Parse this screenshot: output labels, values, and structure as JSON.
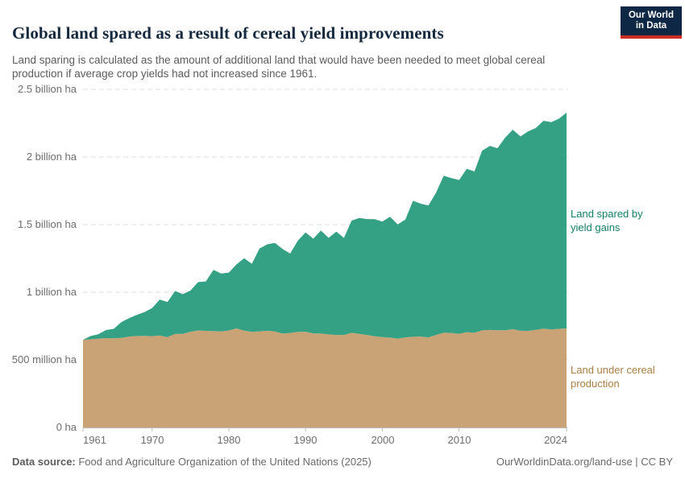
{
  "header": {
    "title": "Global land spared as a result of cereal yield improvements",
    "subtitle": "Land sparing is calculated as the amount of additional land that would have been needed to meet global cereal production if average crop yields had not increased since 1961."
  },
  "logo": {
    "line1": "Our World",
    "line2": "in Data",
    "bg_color": "#0d2744",
    "accent_color": "#cc2e24",
    "text_color": "#ffffff"
  },
  "chart_data": {
    "type": "area",
    "stacked": true,
    "title": "Global land spared as a result of cereal yield improvements",
    "unit": "million hectares",
    "ylim": [
      0,
      2500
    ],
    "grid": "horizontal dashed",
    "x": [
      1961,
      1962,
      1963,
      1964,
      1965,
      1966,
      1967,
      1968,
      1969,
      1970,
      1971,
      1972,
      1973,
      1974,
      1975,
      1976,
      1977,
      1978,
      1979,
      1980,
      1981,
      1982,
      1983,
      1984,
      1985,
      1986,
      1987,
      1988,
      1989,
      1990,
      1991,
      1992,
      1993,
      1994,
      1995,
      1996,
      1997,
      1998,
      1999,
      2000,
      2001,
      2002,
      2003,
      2004,
      2005,
      2006,
      2007,
      2008,
      2009,
      2010,
      2011,
      2012,
      2013,
      2014,
      2015,
      2016,
      2017,
      2018,
      2019,
      2020,
      2021,
      2022,
      2023,
      2024
    ],
    "series": [
      {
        "name": "Land under cereal production",
        "color": "#c9a276",
        "label_color": "#aa7e44",
        "values": [
          648,
          652,
          656,
          661,
          659,
          662,
          672,
          676,
          677,
          675,
          680,
          668,
          691,
          692,
          708,
          717,
          714,
          713,
          710,
          717,
          732,
          716,
          707,
          711,
          715,
          710,
          694,
          699,
          707,
          708,
          696,
          694,
          688,
          684,
          684,
          700,
          692,
          684,
          674,
          668,
          664,
          657,
          666,
          670,
          672,
          666,
          684,
          701,
          699,
          693,
          705,
          700,
          718,
          721,
          719,
          719,
          727,
          715,
          714,
          722,
          731,
          725,
          729,
          732
        ]
      },
      {
        "name": "Land spared by yield gains",
        "color": "#35a184",
        "label_color": "#127e66",
        "values": [
          0,
          24,
          33,
          59,
          70,
          117,
          136,
          157,
          176,
          207,
          266,
          260,
          318,
          294,
          304,
          358,
          366,
          452,
          428,
          428,
          474,
          536,
          503,
          612,
          639,
          655,
          626,
          587,
          676,
          734,
          700,
          762,
          714,
          764,
          718,
          830,
          857,
          857,
          866,
          854,
          894,
          844,
          871,
          1006,
          983,
          975,
          1053,
          1161,
          1145,
          1137,
          1207,
          1193,
          1328,
          1361,
          1346,
          1424,
          1475,
          1437,
          1476,
          1492,
          1537,
          1533,
          1554,
          1596
        ]
      }
    ],
    "y_ticks": [
      {
        "v": 2500,
        "label": "2.5 billion ha"
      },
      {
        "v": 2000,
        "label": "2 billion ha"
      },
      {
        "v": 1500,
        "label": "1.5 billion ha"
      },
      {
        "v": 1000,
        "label": "1 billion ha"
      },
      {
        "v": 500,
        "label": "500 million ha"
      },
      {
        "v": 0,
        "label": "0 ha"
      }
    ],
    "x_ticks": [
      {
        "year": 1961,
        "label": "1961"
      },
      {
        "year": 1970,
        "label": "1970"
      },
      {
        "year": 1980,
        "label": "1980"
      },
      {
        "year": 1990,
        "label": "1990"
      },
      {
        "year": 2000,
        "label": "2000"
      },
      {
        "year": 2010,
        "label": "2010"
      },
      {
        "year": 2024,
        "label": "2024"
      }
    ],
    "axis_color": "#b8b8b8",
    "gridline_color": "#dcdcdc"
  },
  "footer": {
    "source_label": "Data source:",
    "source_text": " Food and Agriculture Organization of the United Nations (2025)",
    "attribution": "OurWorldinData.org/land-use | CC BY"
  }
}
